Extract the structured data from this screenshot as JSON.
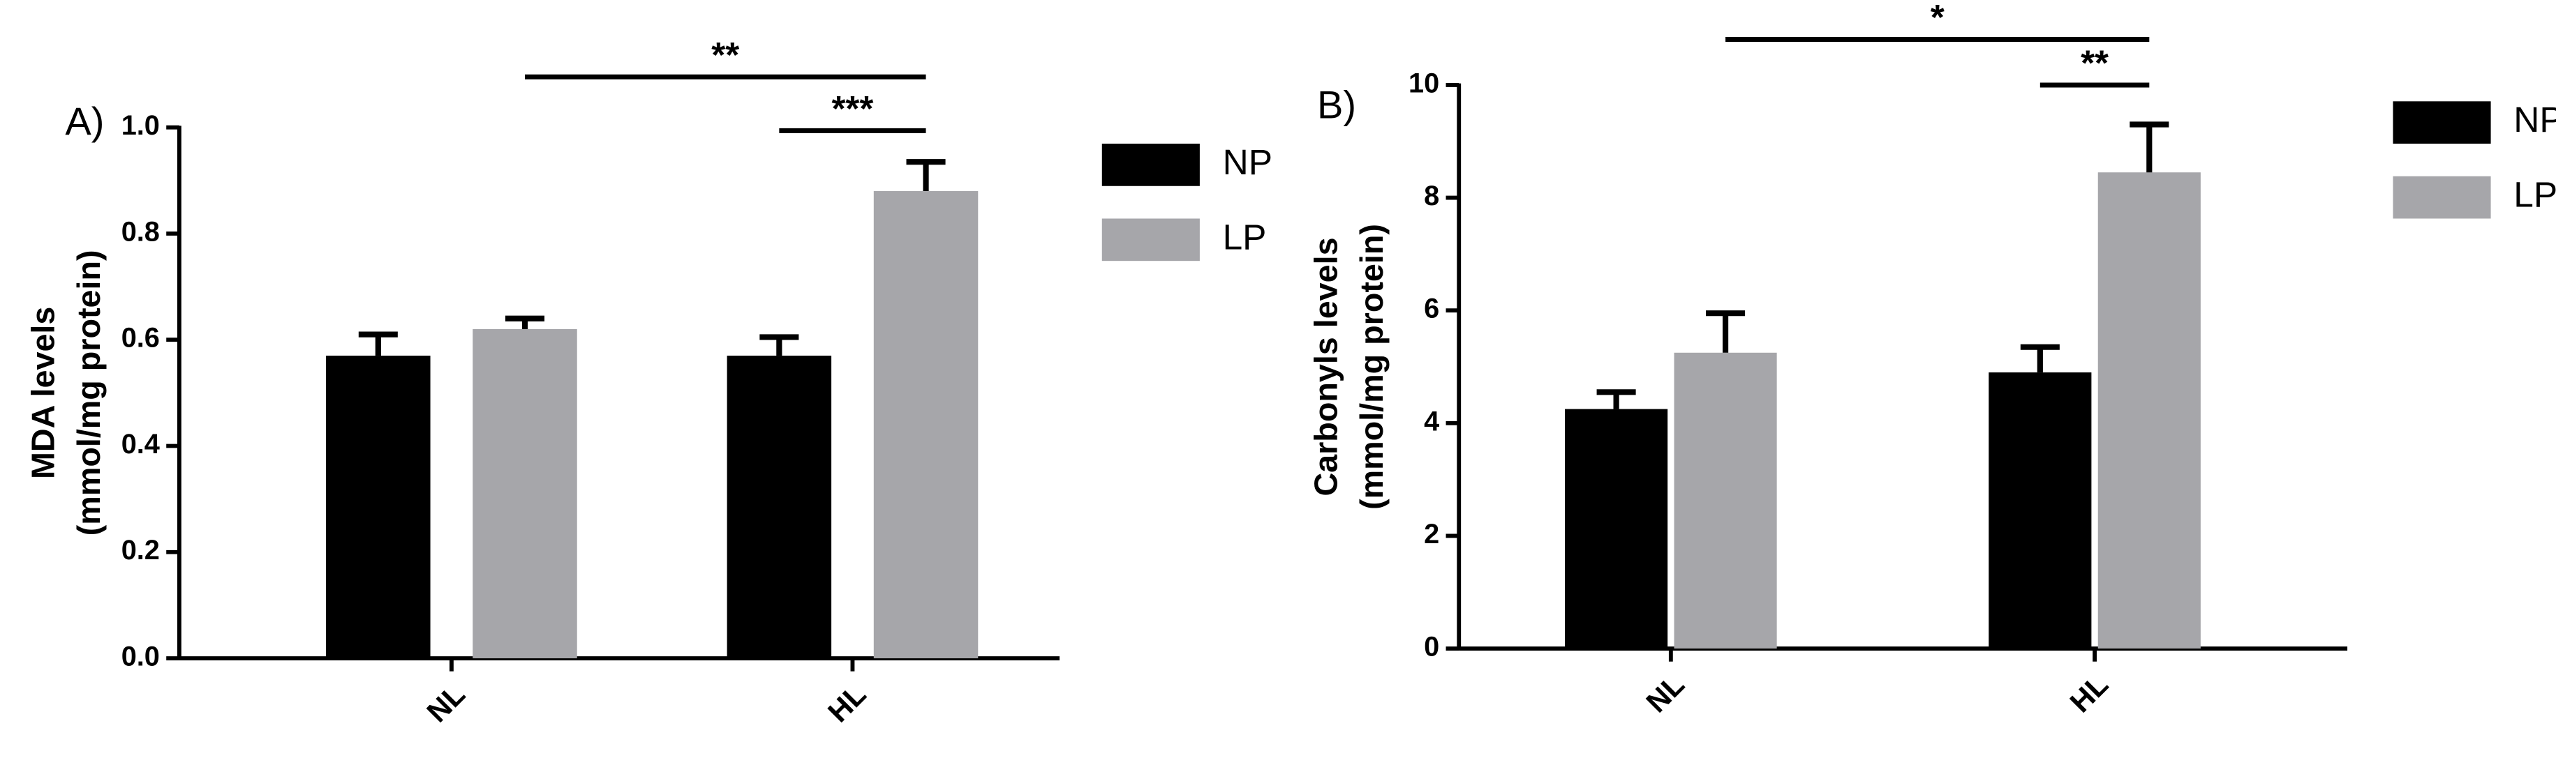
{
  "chart_data": [
    {
      "type": "bar",
      "panel": "A)",
      "ylabel": [
        "MDA levels",
        "(mmol/mg protein)"
      ],
      "categories": [
        "NL",
        "HL"
      ],
      "series": [
        {
          "name": "NP",
          "color": "#000000",
          "values": [
            0.57,
            0.57
          ],
          "errors": [
            0.04,
            0.035
          ]
        },
        {
          "name": "LP",
          "color": "#a6a6aa",
          "values": [
            0.62,
            0.88
          ],
          "errors": [
            0.02,
            0.055
          ]
        }
      ],
      "ylim": [
        0,
        1.0
      ],
      "yticks": [
        {
          "value": 0,
          "label": "0.0"
        },
        0.2,
        0.4,
        0.6,
        0.8,
        {
          "value": 1.0,
          "label": "1.0"
        }
      ],
      "annotations": [
        {
          "text": "**",
          "from": [
            0,
            1
          ],
          "to": [
            1,
            1
          ]
        },
        {
          "text": "***",
          "from": [
            1,
            0
          ],
          "to": [
            1,
            1
          ]
        }
      ]
    },
    {
      "type": "bar",
      "panel": "B)",
      "ylabel": [
        "Carbonyls levels",
        "(mmol/mg protein)"
      ],
      "categories": [
        "NL",
        "HL"
      ],
      "series": [
        {
          "name": "NP",
          "color": "#000000",
          "values": [
            4.25,
            4.9
          ],
          "errors": [
            0.3,
            0.45
          ]
        },
        {
          "name": "LP",
          "color": "#a6a6aa",
          "values": [
            5.25,
            8.45
          ],
          "errors": [
            0.7,
            0.85
          ]
        }
      ],
      "ylim": [
        0,
        10
      ],
      "yticks": [
        0,
        2,
        4,
        6,
        8,
        10
      ],
      "annotations": [
        {
          "text": "*",
          "from": [
            0,
            1
          ],
          "to": [
            1,
            1
          ]
        },
        {
          "text": "**",
          "from": [
            1,
            0
          ],
          "to": [
            1,
            1
          ]
        }
      ]
    }
  ]
}
